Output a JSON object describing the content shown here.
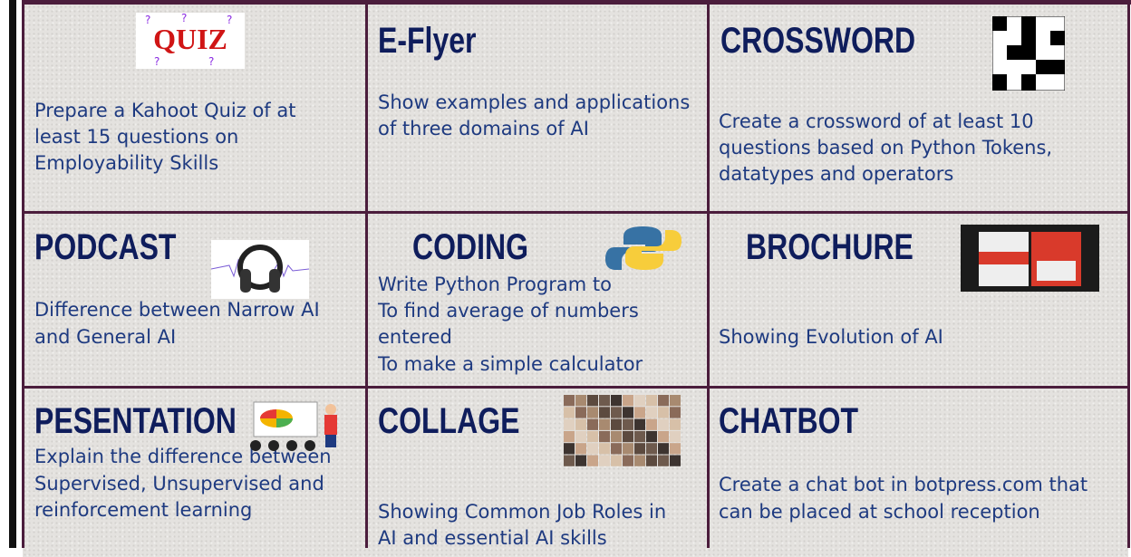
{
  "cells": [
    {
      "title": null,
      "image_label": "QUIZ",
      "lines": [
        "Prepare a Kahoot Quiz of at",
        "least 15 questions on",
        "Employability Skills"
      ]
    },
    {
      "title": "E-Flyer",
      "lines": [
        "Show examples and applications",
        "of three domains of AI"
      ]
    },
    {
      "title": "CROSSWORD",
      "lines": [
        "Create a crossword of at least 10",
        "questions based on Python Tokens,",
        "datatypes and operators"
      ]
    },
    {
      "title": "PODCAST",
      "lines": [
        "Difference between Narrow AI",
        "and General AI"
      ]
    },
    {
      "title": "CODING",
      "lines": [
        "Write Python Program to",
        "To find average of numbers",
        "entered",
        "To make a simple calculator"
      ]
    },
    {
      "title": "BROCHURE",
      "lines": [
        "Showing Evolution of AI"
      ]
    },
    {
      "title": "PESENTATION",
      "lines": [
        "Explain the difference between",
        "Supervised, Unsupervised and",
        "reinforcement learning"
      ]
    },
    {
      "title": "COLLAGE",
      "lines": [
        "Showing Common Job Roles in",
        "AI and essential AI skills"
      ]
    },
    {
      "title": "CHATBOT",
      "lines": [
        "Create a chat bot in botpress.com that",
        "can be placed at school reception"
      ]
    }
  ]
}
